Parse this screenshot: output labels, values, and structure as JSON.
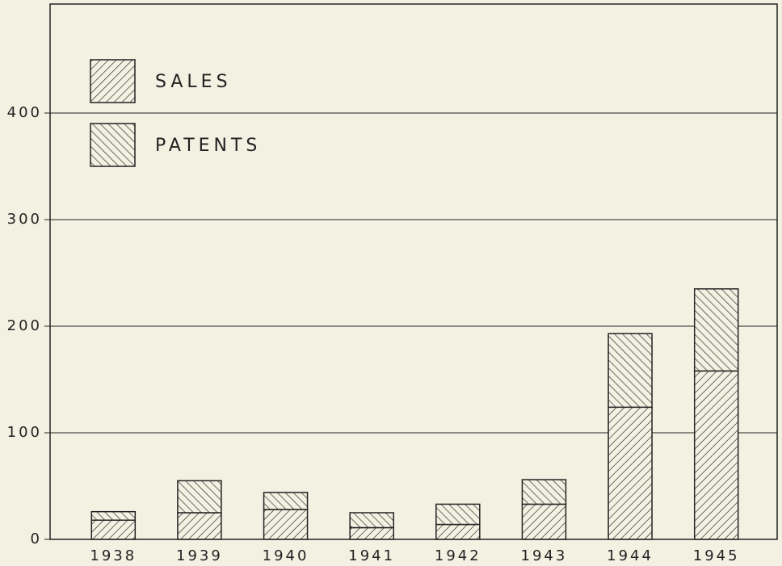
{
  "chart_data": {
    "type": "stacked_bar",
    "categories": [
      "1938",
      "1939",
      "1940",
      "1941",
      "1942",
      "1943",
      "1944",
      "1945"
    ],
    "series": [
      {
        "name": "SALES",
        "color": "#222222",
        "values": [
          18,
          25,
          28,
          11,
          14,
          33,
          124,
          158
        ]
      },
      {
        "name": "PATENTS",
        "color": "#222222",
        "values": [
          8,
          30,
          16,
          14,
          19,
          23,
          69,
          77
        ]
      }
    ],
    "ylim": [
      0,
      500
    ],
    "yticks": [
      0,
      100,
      200,
      300,
      400
    ],
    "grid": true,
    "legend": "upper left"
  }
}
